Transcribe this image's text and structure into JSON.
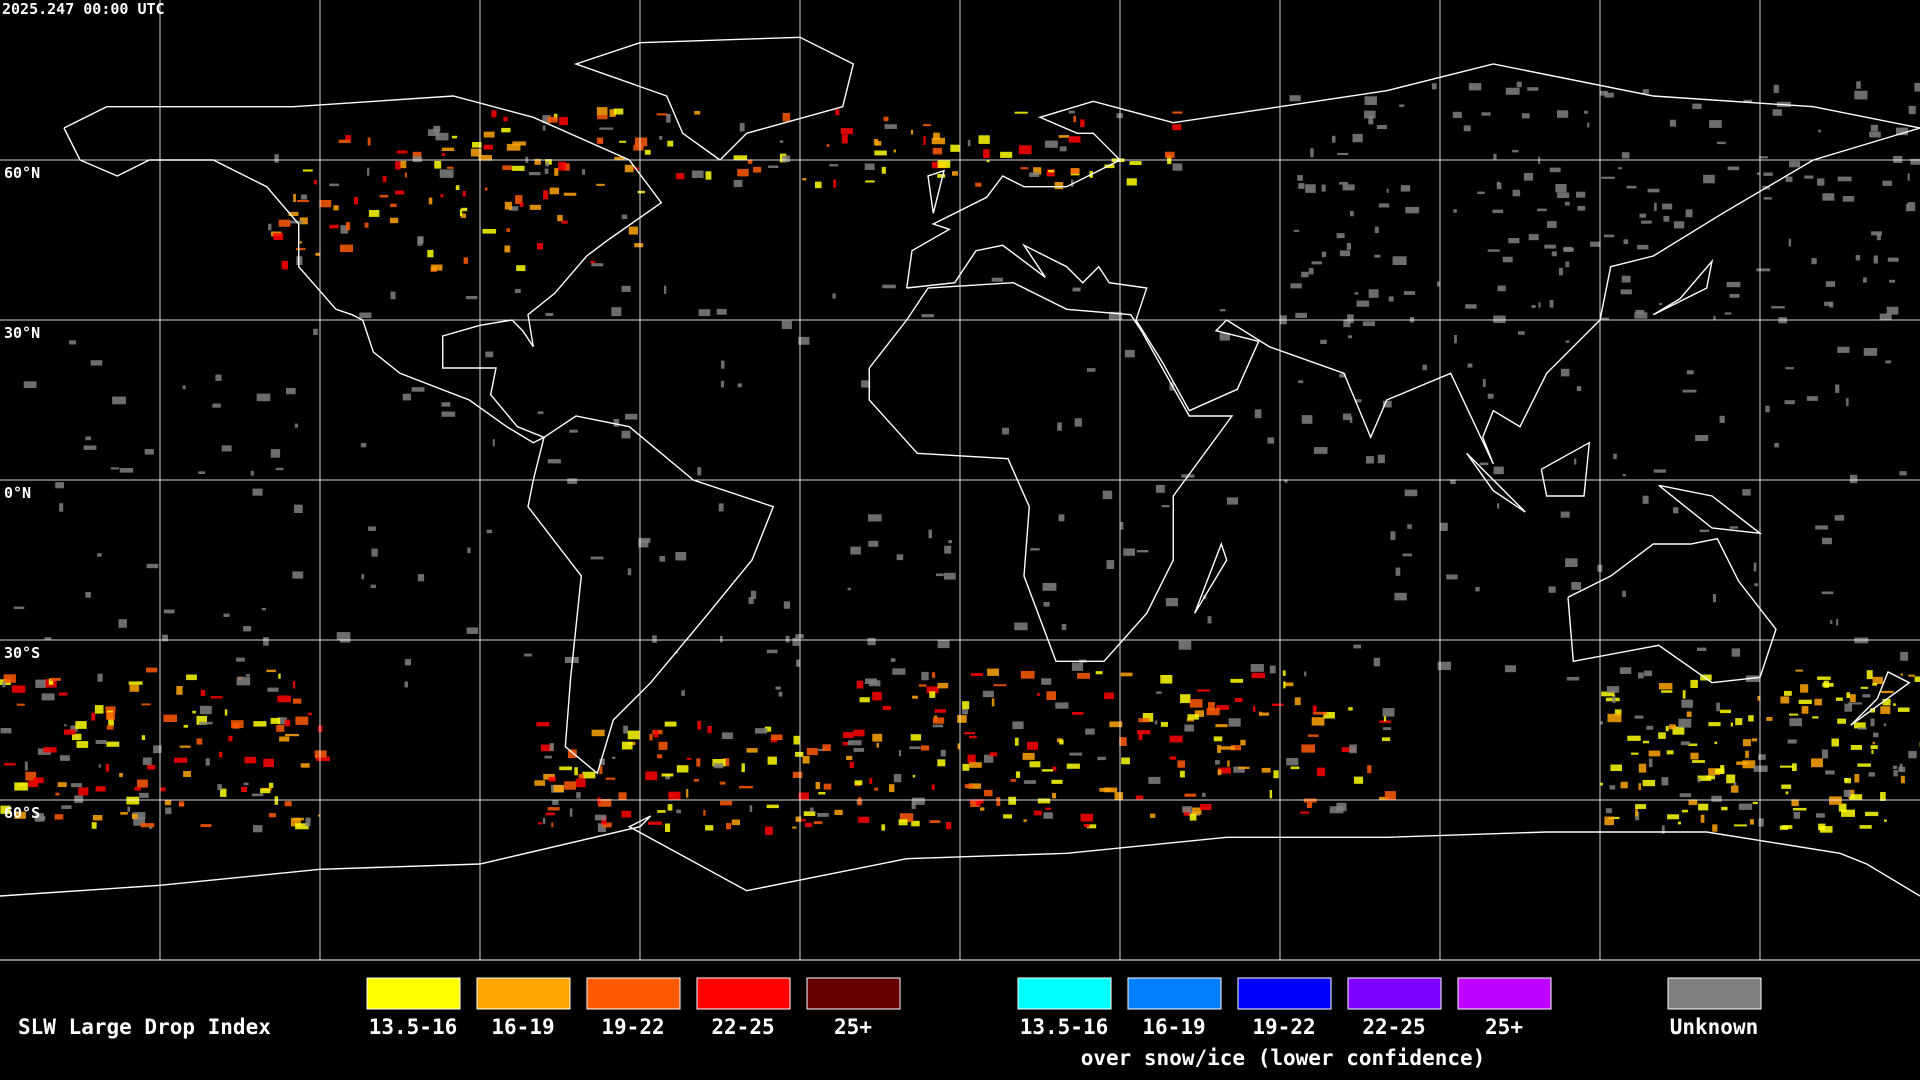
{
  "timestamp": "2025.247 00:00 UTC",
  "map": {
    "latitude_labels": [
      "60°N",
      "30°N",
      "0°N",
      "30°S",
      "60°S"
    ]
  },
  "legend": {
    "title": "SLW Large Drop Index",
    "groups": [
      {
        "items": [
          {
            "label": "13.5-16",
            "color": "#ffff00"
          },
          {
            "label": "16-19",
            "color": "#ffa500"
          },
          {
            "label": "19-22",
            "color": "#ff5a00"
          },
          {
            "label": "22-25",
            "color": "#ff0000"
          },
          {
            "label": "25+",
            "color": "#640000"
          }
        ]
      },
      {
        "items": [
          {
            "label": "13.5-16",
            "color": "#00ffff"
          },
          {
            "label": "16-19",
            "color": "#0080ff"
          },
          {
            "label": "19-22",
            "color": "#0000ff"
          },
          {
            "label": "22-25",
            "color": "#8000ff"
          },
          {
            "label": "25+",
            "color": "#c000ff"
          }
        ],
        "caption": "over snow/ice (lower confidence)"
      }
    ],
    "unknown": {
      "label": "Unknown",
      "color": "#808080"
    }
  }
}
